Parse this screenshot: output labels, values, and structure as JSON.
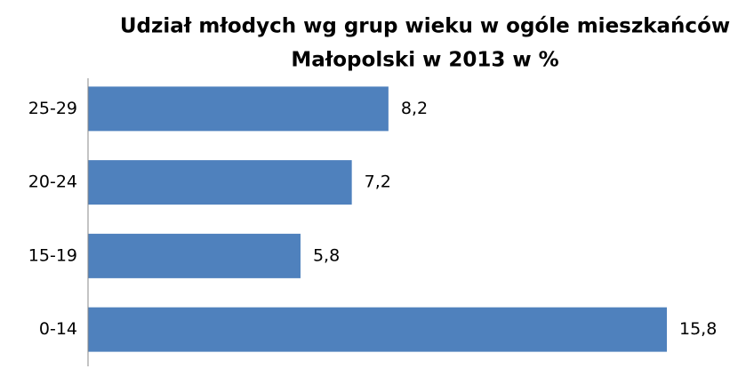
{
  "chart_data": {
    "type": "bar",
    "orientation": "horizontal",
    "title": [
      "Udział młodych wg grup wieku w ogóle mieszkańców",
      "Małopolski w 2013 w %"
    ],
    "categories": [
      "0-14",
      "15-19",
      "20-24",
      "25-29"
    ],
    "values": [
      15.8,
      5.8,
      7.2,
      8.2
    ],
    "value_labels": [
      "15,8",
      "5,8",
      "7,2",
      "8,2"
    ],
    "color": "#4f81bd"
  }
}
